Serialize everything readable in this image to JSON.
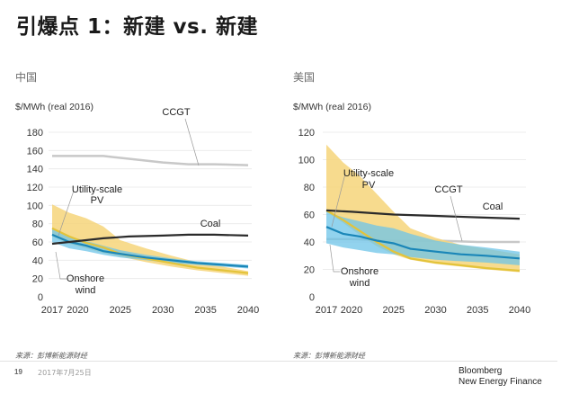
{
  "page": {
    "title": "引爆点 1：新建 vs. 新建",
    "source_label_left": "来源：彭博新能源财经",
    "source_label_right": "来源：彭博新能源财经",
    "page_number": "19",
    "date": "2017年7月25日",
    "brand_line1": "Bloomberg",
    "brand_line2": "New Energy Finance"
  },
  "colors": {
    "pv_band": "#f6d57a",
    "wind_band": "#6ec4e8",
    "overlap_band": "#7fb9a8",
    "wind_line": "#1a86b8",
    "pv_line": "#e3c33a",
    "coal_line": "#2b2b2b",
    "ccgt_line": "#c8c8c8"
  },
  "chart_data": [
    {
      "type": "area",
      "region": "中国",
      "ylabel": "$/MWh (real 2016)",
      "ylim": [
        0,
        180
      ],
      "yticks": [
        "0",
        "20",
        "40",
        "60",
        "80",
        "100",
        "120",
        "140",
        "160",
        "180"
      ],
      "xlim": [
        2017,
        2040
      ],
      "xticks": [
        "2017",
        "2020",
        "2025",
        "2030",
        "2035",
        "2040"
      ],
      "grid": true,
      "series": [
        {
          "name": "CCGT",
          "kind": "line",
          "x": [
            2017,
            2020,
            2023,
            2026,
            2030,
            2033,
            2036,
            2040
          ],
          "y": [
            154,
            154,
            154,
            151,
            147,
            145,
            145,
            144
          ]
        },
        {
          "name": "Coal",
          "kind": "line",
          "x": [
            2017,
            2020,
            2023,
            2026,
            2030,
            2033,
            2036,
            2040
          ],
          "y": [
            58,
            61,
            64,
            66,
            67,
            68,
            68,
            67
          ]
        },
        {
          "name": "Utility-scale PV",
          "kind": "band",
          "x": [
            2017,
            2019,
            2021,
            2023,
            2025,
            2028,
            2031,
            2034,
            2037,
            2040
          ],
          "upper": [
            101,
            92,
            86,
            77,
            62,
            53,
            45,
            38,
            33,
            28
          ],
          "lower": [
            66,
            58,
            53,
            48,
            44,
            38,
            33,
            29,
            26,
            23
          ],
          "median": [
            75,
            66,
            59,
            54,
            47,
            42,
            37,
            32,
            29,
            26
          ]
        },
        {
          "name": "Onshore wind",
          "kind": "band",
          "x": [
            2017,
            2019,
            2021,
            2023,
            2025,
            2028,
            2031,
            2034,
            2037,
            2040
          ],
          "upper": [
            74,
            66,
            61,
            56,
            51,
            46,
            42,
            39,
            37,
            35
          ],
          "lower": [
            60,
            53,
            50,
            46,
            43,
            40,
            37,
            35,
            33,
            31
          ],
          "median": [
            68,
            60,
            56,
            50,
            47,
            43,
            40,
            37,
            35,
            33
          ]
        }
      ],
      "annotations": [
        "CCGT",
        "Coal",
        "Utility-scale PV",
        "Onshore wind"
      ]
    },
    {
      "type": "area",
      "region": "美国",
      "ylabel": "$/MWh (real 2016)",
      "ylim": [
        0,
        120
      ],
      "yticks": [
        "0",
        "20",
        "40",
        "60",
        "80",
        "100",
        "120"
      ],
      "xlim": [
        2017,
        2040
      ],
      "xticks": [
        "2017",
        "2020",
        "2025",
        "2030",
        "2035",
        "2040"
      ],
      "grid": true,
      "series": [
        {
          "name": "CCGT",
          "kind": "line",
          "x": [
            2017,
            2020,
            2025,
            2030,
            2035,
            2040
          ],
          "y": [
            42,
            42,
            41,
            41,
            40,
            40
          ]
        },
        {
          "name": "Coal",
          "kind": "line",
          "x": [
            2017,
            2020,
            2025,
            2030,
            2035,
            2040
          ],
          "y": [
            63,
            62,
            60,
            59,
            58,
            57
          ]
        },
        {
          "name": "Utility-scale PV",
          "kind": "band",
          "x": [
            2017,
            2019,
            2021,
            2023,
            2025,
            2027,
            2030,
            2033,
            2036,
            2040
          ],
          "upper": [
            111,
            98,
            88,
            75,
            62,
            50,
            43,
            38,
            35,
            31
          ],
          "lower": [
            62,
            54,
            45,
            37,
            31,
            27,
            24,
            22,
            20,
            18
          ],
          "median": [
            63,
            56,
            48,
            40,
            33,
            28,
            25,
            23,
            21,
            19
          ]
        },
        {
          "name": "Onshore wind",
          "kind": "band",
          "x": [
            2017,
            2019,
            2021,
            2023,
            2025,
            2027,
            2030,
            2033,
            2036,
            2040
          ],
          "upper": [
            62,
            58,
            55,
            52,
            50,
            46,
            41,
            38,
            36,
            33
          ],
          "lower": [
            39,
            36,
            34,
            32,
            31,
            29,
            27,
            26,
            25,
            23
          ],
          "median": [
            51,
            46,
            44,
            41,
            39,
            35,
            33,
            31,
            30,
            28
          ]
        }
      ],
      "annotations": [
        "Utility-scale PV",
        "CCGT",
        "Coal",
        "Onshore wind"
      ]
    }
  ]
}
